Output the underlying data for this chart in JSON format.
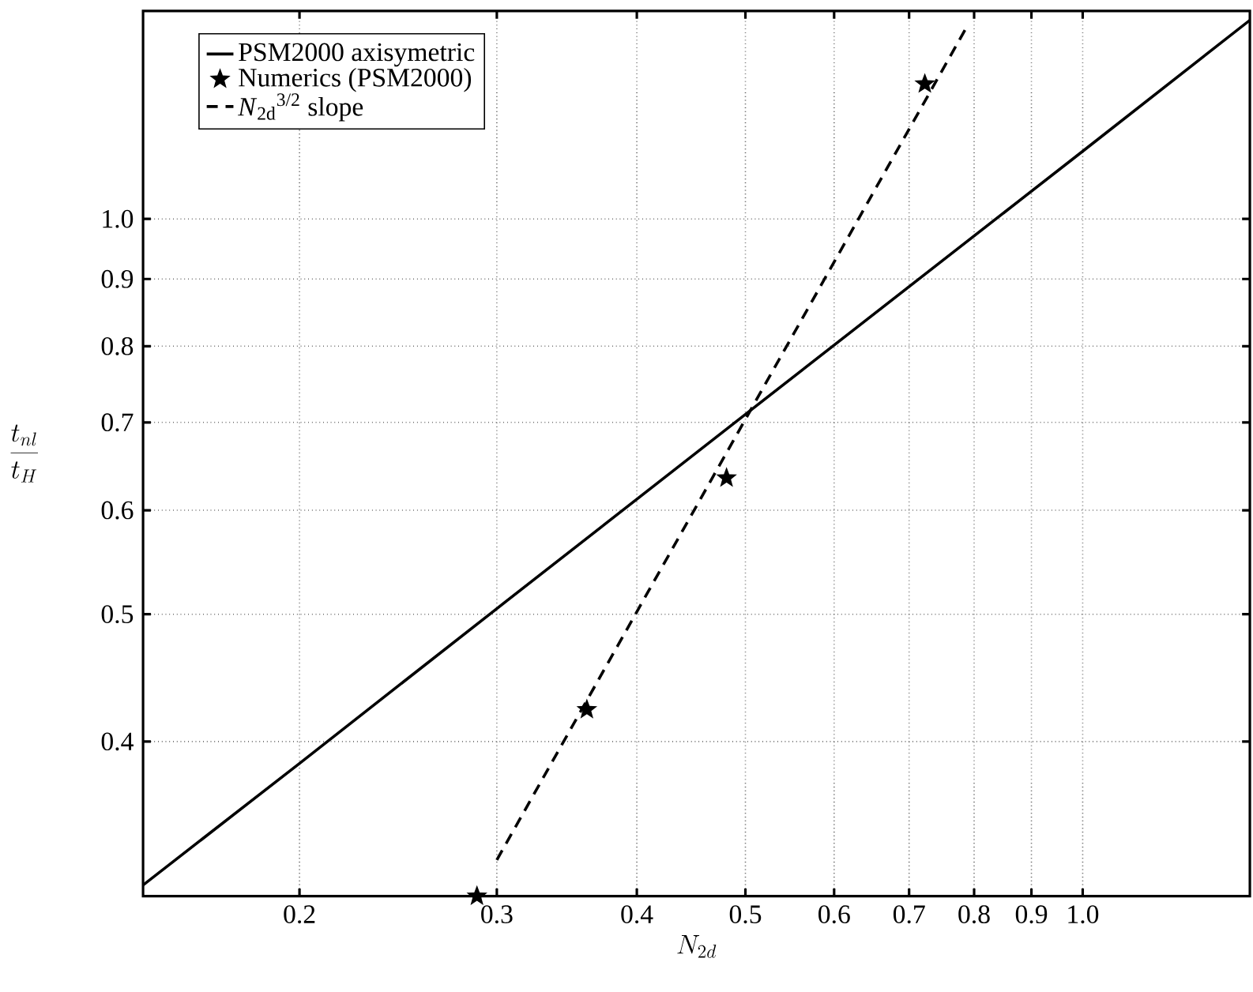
{
  "chart_data": {
    "type": "line",
    "xlabel": "N_{2d}",
    "ylabel": "\\frac{t_{nl}}{t_H}",
    "log": "xy",
    "grid": true,
    "legend": "top left",
    "xlim": [
      0.145,
      1.41
    ],
    "ylim": [
      0.305,
      1.44
    ],
    "xticks": [
      0.2,
      0.3,
      0.4,
      0.5,
      0.6,
      0.7,
      0.8,
      0.9,
      {
        "value": 1,
        "label": "1.0"
      }
    ],
    "yticks": [
      0.4,
      0.5,
      0.6,
      0.7,
      0.8,
      0.9,
      {
        "value": 1,
        "label": "1.0"
      }
    ],
    "series": [
      {
        "name": "PSM2000 axisymetric",
        "line_style": "solid",
        "marker": "none",
        "color": "#000000",
        "x": [
          0.145,
          0.2,
          0.3,
          0.5,
          1.0,
          1.41
        ],
        "values": [
          0.311,
          0.385,
          0.505,
          0.71,
          1.126,
          1.417
        ]
      },
      {
        "name": "Numerics (PSM2000)",
        "type": "scatter",
        "marker": "star",
        "color": "#000000",
        "x": [
          0.288,
          0.361,
          0.481,
          0.723
        ],
        "values": [
          0.305,
          0.423,
          0.635,
          1.267
        ]
      },
      {
        "name": "*N*$_{2d}$$^{3/2}$ slope",
        "line_style": "dashed",
        "marker": "none",
        "color": "#000000",
        "x": [
          0.3,
          0.788
        ],
        "values": [
          0.325,
          1.4
        ]
      }
    ]
  }
}
